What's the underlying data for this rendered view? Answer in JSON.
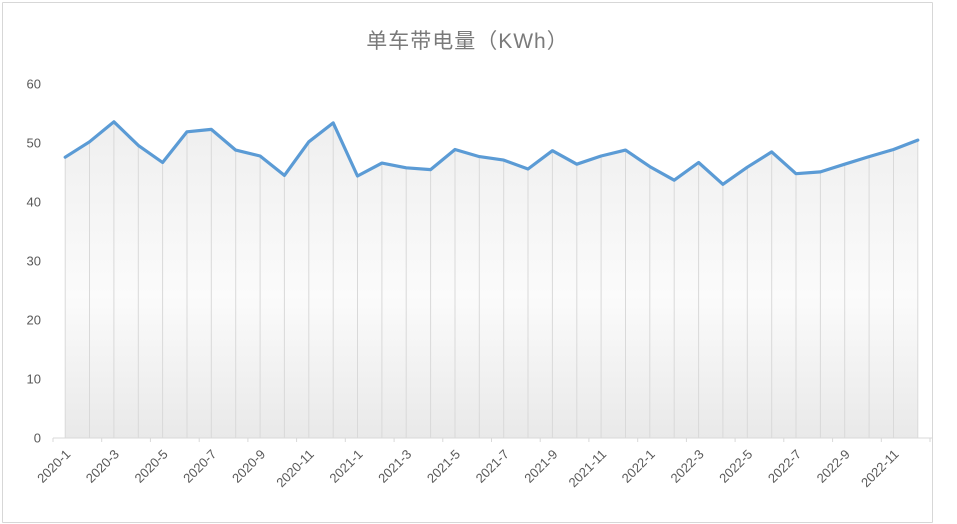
{
  "chart_title": "单车带电量（KWh）",
  "chart_data": {
    "type": "line",
    "title": "单车带电量（KWh）",
    "x": [
      "2020-1",
      "2020-2",
      "2020-3",
      "2020-4",
      "2020-5",
      "2020-6",
      "2020-7",
      "2020-8",
      "2020-9",
      "2020-10",
      "2020-11",
      "2020-12",
      "2021-1",
      "2021-2",
      "2021-3",
      "2021-4",
      "2021-5",
      "2021-6",
      "2021-7",
      "2021-8",
      "2021-9",
      "2021-10",
      "2021-11",
      "2021-12",
      "2022-1",
      "2022-2",
      "2022-3",
      "2022-4",
      "2022-5",
      "2022-6",
      "2022-7",
      "2022-8",
      "2022-9",
      "2022-10",
      "2022-11",
      "2022-12"
    ],
    "values": [
      47.6,
      50.2,
      53.6,
      49.6,
      46.7,
      51.9,
      52.3,
      48.8,
      47.8,
      44.5,
      50.2,
      53.4,
      44.4,
      46.6,
      45.8,
      45.5,
      48.9,
      47.7,
      47.1,
      45.6,
      48.7,
      46.4,
      47.8,
      48.8,
      46.0,
      43.7,
      46.7,
      43.0,
      45.9,
      48.5,
      44.8,
      45.1,
      46.4,
      47.7,
      48.9,
      50.5
    ],
    "xlabel": "",
    "ylabel": "",
    "ylim": [
      0,
      60
    ],
    "yticks": [
      0,
      10,
      20,
      30,
      40,
      50,
      60
    ],
    "xtick_every": 2,
    "legend": "none",
    "grid": "vertical-droplines-only",
    "colors": {
      "line": "#5b9bd5",
      "dropline": "#d9d9d9",
      "axis_line": "#d9d9d9",
      "axis_text": "#595959",
      "title_text": "#7a7a7a",
      "area_top": "#efefef",
      "area_mid": "#fbfbfb",
      "area_bottom": "#e9e9e9"
    }
  }
}
